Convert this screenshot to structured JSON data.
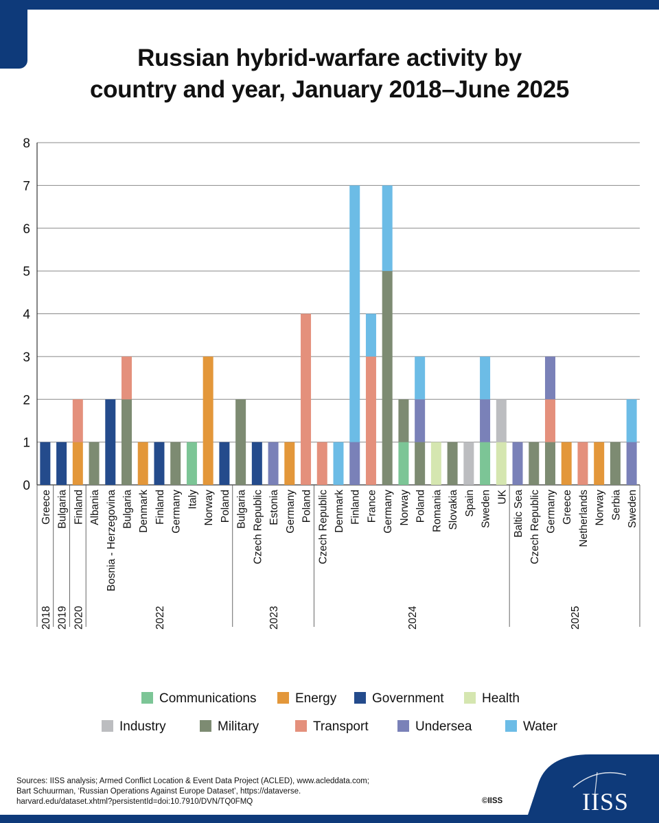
{
  "title_lines": [
    "Russian hybrid-warfare activity by",
    "country and year, January 2018–June 2025"
  ],
  "legend": [
    {
      "label": "Communications",
      "color": "#7cc596"
    },
    {
      "label": "Energy",
      "color": "#e3973a"
    },
    {
      "label": "Government",
      "color": "#244b8c"
    },
    {
      "label": "Health",
      "color": "#d5e6b0"
    },
    {
      "label": "Industry",
      "color": "#bcbdc0"
    },
    {
      "label": "Military",
      "color": "#7d8b72"
    },
    {
      "label": "Transport",
      "color": "#e4907c"
    },
    {
      "label": "Undersea",
      "color": "#7a81b8"
    },
    {
      "label": "Water",
      "color": "#6cbce6"
    }
  ],
  "sources": "Sources: IISS analysis; Armed Conflict Location & Event Data Project (ACLED), www.acleddata.com; Bart Schuurman, ‘Russian Operations Against Europe Dataset’, https://dataverse. harvard.edu/dataset.xhtml?persistentId=doi:10.7910/DVN/TQ0FMQ",
  "copyright": "©IISS",
  "logo": "IISS",
  "chart_data": {
    "type": "bar",
    "stacked": true,
    "title": "Russian hybrid-warfare activity by country and year, January 2018–June 2025",
    "xlabel": "",
    "ylabel": "",
    "ylim": [
      0,
      8
    ],
    "yticks": [
      0,
      1,
      2,
      3,
      4,
      5,
      6,
      7,
      8
    ],
    "grid": true,
    "categories": [
      {
        "country": "Greece",
        "year": "2018"
      },
      {
        "country": "Bulgaria",
        "year": "2019"
      },
      {
        "country": "Finland",
        "year": "2020"
      },
      {
        "country": "Albania",
        "year": "2022"
      },
      {
        "country": "Bosnia - Herzegovina",
        "year": "2022"
      },
      {
        "country": "Bulgaria",
        "year": "2022"
      },
      {
        "country": "Denmark",
        "year": "2022"
      },
      {
        "country": "Finland",
        "year": "2022"
      },
      {
        "country": "Germany",
        "year": "2022"
      },
      {
        "country": "Italy",
        "year": "2022"
      },
      {
        "country": "Norway",
        "year": "2022"
      },
      {
        "country": "Poland",
        "year": "2022"
      },
      {
        "country": "Bulgaria",
        "year": "2023"
      },
      {
        "country": "Czech Republic",
        "year": "2023"
      },
      {
        "country": "Estonia",
        "year": "2023"
      },
      {
        "country": "Germany",
        "year": "2023"
      },
      {
        "country": "Poland",
        "year": "2023"
      },
      {
        "country": "Czech Republic",
        "year": "2024"
      },
      {
        "country": "Denmark",
        "year": "2024"
      },
      {
        "country": "Finland",
        "year": "2024"
      },
      {
        "country": "France",
        "year": "2024"
      },
      {
        "country": "Germany",
        "year": "2024"
      },
      {
        "country": "Norway",
        "year": "2024"
      },
      {
        "country": "Poland",
        "year": "2024"
      },
      {
        "country": "Romania",
        "year": "2024"
      },
      {
        "country": "Slovakia",
        "year": "2024"
      },
      {
        "country": "Spain",
        "year": "2024"
      },
      {
        "country": "Sweden",
        "year": "2024"
      },
      {
        "country": "UK",
        "year": "2024"
      },
      {
        "country": "Baltic Sea",
        "year": "2025"
      },
      {
        "country": "Czech Republic",
        "year": "2025"
      },
      {
        "country": "Germany",
        "year": "2025"
      },
      {
        "country": "Greece",
        "year": "2025"
      },
      {
        "country": "Netherlands",
        "year": "2025"
      },
      {
        "country": "Norway",
        "year": "2025"
      },
      {
        "country": "Serbia",
        "year": "2025"
      },
      {
        "country": "Sweden",
        "year": "2025"
      }
    ],
    "year_groups": [
      {
        "label": "2018",
        "start": 0,
        "end": 0
      },
      {
        "label": "2019",
        "start": 1,
        "end": 1
      },
      {
        "label": "2020",
        "start": 2,
        "end": 2
      },
      {
        "label": "2022",
        "start": 3,
        "end": 11
      },
      {
        "label": "2023",
        "start": 12,
        "end": 16
      },
      {
        "label": "2024",
        "start": 17,
        "end": 28
      },
      {
        "label": "2025",
        "start": 29,
        "end": 36
      }
    ],
    "series": [
      {
        "name": "Communications",
        "values": [
          0,
          0,
          0,
          0,
          0,
          0,
          0,
          0,
          0,
          1,
          0,
          0,
          0,
          0,
          0,
          0,
          0,
          0,
          0,
          0,
          0,
          0,
          1,
          0,
          0,
          0,
          0,
          1,
          0,
          0,
          0,
          0,
          0,
          0,
          0,
          0,
          0
        ]
      },
      {
        "name": "Energy",
        "values": [
          0,
          0,
          1,
          0,
          0,
          0,
          1,
          0,
          0,
          0,
          3,
          0,
          0,
          0,
          0,
          1,
          0,
          0,
          0,
          0,
          0,
          0,
          0,
          0,
          0,
          0,
          0,
          0,
          0,
          0,
          0,
          0,
          1,
          0,
          1,
          0,
          0
        ]
      },
      {
        "name": "Government",
        "values": [
          1,
          1,
          0,
          0,
          2,
          0,
          0,
          1,
          0,
          0,
          0,
          1,
          0,
          1,
          0,
          0,
          0,
          0,
          0,
          0,
          0,
          0,
          0,
          0,
          0,
          0,
          0,
          0,
          0,
          0,
          0,
          0,
          0,
          0,
          0,
          0,
          0
        ]
      },
      {
        "name": "Health",
        "values": [
          0,
          0,
          0,
          0,
          0,
          0,
          0,
          0,
          0,
          0,
          0,
          0,
          0,
          0,
          0,
          0,
          0,
          0,
          0,
          0,
          0,
          0,
          0,
          0,
          1,
          0,
          0,
          0,
          1,
          0,
          0,
          0,
          0,
          0,
          0,
          0,
          0
        ]
      },
      {
        "name": "Industry",
        "values": [
          0,
          0,
          0,
          0,
          0,
          0,
          0,
          0,
          0,
          0,
          0,
          0,
          0,
          0,
          0,
          0,
          0,
          0,
          0,
          0,
          0,
          0,
          0,
          0,
          0,
          0,
          1,
          0,
          1,
          0,
          0,
          0,
          0,
          0,
          0,
          0,
          0
        ]
      },
      {
        "name": "Military",
        "values": [
          0,
          0,
          0,
          1,
          0,
          2,
          0,
          0,
          1,
          0,
          0,
          0,
          2,
          0,
          0,
          0,
          0,
          0,
          0,
          0,
          0,
          5,
          1,
          1,
          0,
          1,
          0,
          0,
          0,
          0,
          1,
          1,
          0,
          0,
          0,
          1,
          0
        ]
      },
      {
        "name": "Transport",
        "values": [
          0,
          0,
          1,
          0,
          0,
          1,
          0,
          0,
          0,
          0,
          0,
          0,
          0,
          0,
          0,
          0,
          4,
          1,
          0,
          0,
          3,
          0,
          0,
          0,
          0,
          0,
          0,
          0,
          0,
          0,
          0,
          1,
          0,
          1,
          0,
          0,
          0
        ]
      },
      {
        "name": "Undersea",
        "values": [
          0,
          0,
          0,
          0,
          0,
          0,
          0,
          0,
          0,
          0,
          0,
          0,
          0,
          0,
          1,
          0,
          0,
          0,
          0,
          1,
          0,
          0,
          0,
          1,
          0,
          0,
          0,
          1,
          0,
          1,
          0,
          1,
          0,
          0,
          0,
          0,
          1
        ]
      },
      {
        "name": "Water",
        "values": [
          0,
          0,
          0,
          0,
          0,
          0,
          0,
          0,
          0,
          0,
          0,
          0,
          0,
          0,
          0,
          0,
          0,
          0,
          1,
          6,
          1,
          2,
          0,
          1,
          0,
          0,
          0,
          1,
          0,
          0,
          0,
          0,
          0,
          0,
          0,
          0,
          1
        ]
      }
    ]
  }
}
